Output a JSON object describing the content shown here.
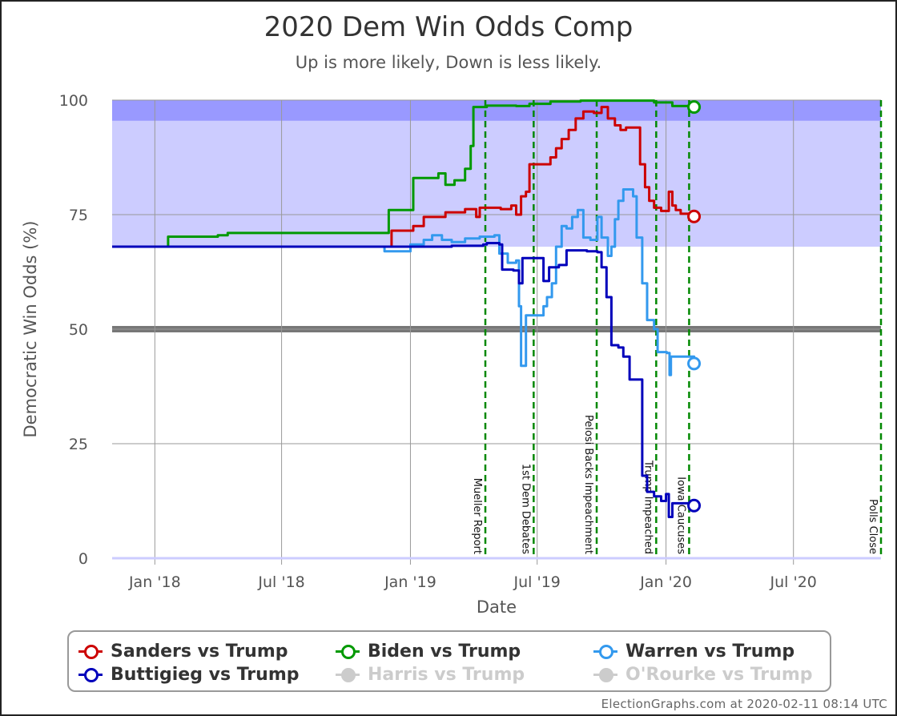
{
  "title": "2020 Dem Win Odds Comp",
  "subtitle": "Up is more likely, Down is less likely.",
  "credits": "ElectionGraphs.com at 2020-02-11 08:14 UTC",
  "legend": [
    {
      "label": "Sanders vs Trump",
      "color": "#cc0000",
      "visible": true
    },
    {
      "label": "Biden vs Trump",
      "color": "#009900",
      "visible": true
    },
    {
      "label": "Warren vs Trump",
      "color": "#3399ee",
      "visible": true
    },
    {
      "label": "Buttigieg vs Trump",
      "color": "#0000bb",
      "visible": true
    },
    {
      "label": "Harris vs Trump",
      "color": "#cccccc",
      "visible": false
    },
    {
      "label": "O'Rourke vs Trump",
      "color": "#cccccc",
      "visible": false
    }
  ],
  "chart_data": {
    "type": "line",
    "title": "2020 Dem Win Odds Comp",
    "subtitle": "Up is more likely, Down is less likely.",
    "xlabel": "Date",
    "ylabel": "Democratic Win Odds (%)",
    "xlim": [
      "2017-11-01",
      "2020-11-03"
    ],
    "ylim": [
      0,
      100
    ],
    "yticks": [
      0,
      25,
      50,
      75,
      100
    ],
    "xticks": [
      {
        "date": "2018-01-01",
        "label": "Jan '18"
      },
      {
        "date": "2018-07-01",
        "label": "Jul '18"
      },
      {
        "date": "2019-01-01",
        "label": "Jan '19"
      },
      {
        "date": "2019-07-01",
        "label": "Jul '19"
      },
      {
        "date": "2020-01-01",
        "label": "Jan '20"
      },
      {
        "date": "2020-07-01",
        "label": "Jul '20"
      }
    ],
    "grid": true,
    "bands": [
      {
        "from": 68,
        "to": 100,
        "color": "#ccccff"
      },
      {
        "from": 95.5,
        "to": 100,
        "color": "#9999ff"
      },
      {
        "from": 49.3,
        "to": 50.7,
        "color": "#777777"
      }
    ],
    "events": [
      {
        "date": "2019-04-18",
        "label": "Mueller Report"
      },
      {
        "date": "2019-06-26",
        "label": "1st Dem Debates"
      },
      {
        "date": "2019-09-24",
        "label": "Pelosi Backs Impeachment"
      },
      {
        "date": "2019-12-18",
        "label": "Trump Impeached"
      },
      {
        "date": "2020-02-03",
        "label": "Iowa Caucuses"
      },
      {
        "date": "2020-11-03",
        "label": "Polls Close"
      }
    ],
    "series": [
      {
        "name": "Sanders vs Trump",
        "color": "#cc0000",
        "points": [
          [
            "2017-11-01",
            68
          ],
          [
            "2018-11-20",
            68
          ],
          [
            "2018-12-05",
            71.5
          ],
          [
            "2019-01-05",
            72.5
          ],
          [
            "2019-01-20",
            74.5
          ],
          [
            "2019-02-20",
            75.5
          ],
          [
            "2019-03-20",
            76.2
          ],
          [
            "2019-04-05",
            74.5
          ],
          [
            "2019-04-10",
            76.5
          ],
          [
            "2019-05-10",
            76.2
          ],
          [
            "2019-05-25",
            77
          ],
          [
            "2019-06-01",
            75
          ],
          [
            "2019-06-08",
            79
          ],
          [
            "2019-06-15",
            80
          ],
          [
            "2019-06-20",
            86
          ],
          [
            "2019-07-15",
            86
          ],
          [
            "2019-07-20",
            87.5
          ],
          [
            "2019-07-28",
            89.5
          ],
          [
            "2019-08-05",
            91.5
          ],
          [
            "2019-08-15",
            93.5
          ],
          [
            "2019-08-25",
            96
          ],
          [
            "2019-09-05",
            97.5
          ],
          [
            "2019-09-20",
            97.2
          ],
          [
            "2019-10-01",
            98.5
          ],
          [
            "2019-10-10",
            96
          ],
          [
            "2019-10-20",
            94.5
          ],
          [
            "2019-10-28",
            93.5
          ],
          [
            "2019-11-05",
            94
          ],
          [
            "2019-11-20",
            94
          ],
          [
            "2019-11-25",
            86
          ],
          [
            "2019-12-02",
            81
          ],
          [
            "2019-12-08",
            78
          ],
          [
            "2019-12-15",
            76.5
          ],
          [
            "2019-12-25",
            75.8
          ],
          [
            "2020-01-02",
            75.8
          ],
          [
            "2020-01-05",
            80
          ],
          [
            "2020-01-10",
            77
          ],
          [
            "2020-01-15",
            76
          ],
          [
            "2020-01-22",
            75.2
          ],
          [
            "2020-02-10",
            74.6
          ]
        ]
      },
      {
        "name": "Biden vs Trump",
        "color": "#009900",
        "points": [
          [
            "2017-11-01",
            68
          ],
          [
            "2018-01-15",
            68
          ],
          [
            "2018-01-20",
            70.2
          ],
          [
            "2018-04-01",
            70.5
          ],
          [
            "2018-04-15",
            71
          ],
          [
            "2018-08-01",
            71
          ],
          [
            "2018-11-20",
            71
          ],
          [
            "2018-12-01",
            76
          ],
          [
            "2019-01-01",
            76
          ],
          [
            "2019-01-05",
            83
          ],
          [
            "2019-02-01",
            83
          ],
          [
            "2019-02-10",
            84
          ],
          [
            "2019-02-20",
            81.5
          ],
          [
            "2019-03-05",
            82.5
          ],
          [
            "2019-03-20",
            85
          ],
          [
            "2019-03-28",
            90
          ],
          [
            "2019-04-01",
            98.5
          ],
          [
            "2019-04-20",
            98.8
          ],
          [
            "2019-06-01",
            98.7
          ],
          [
            "2019-06-20",
            99.2
          ],
          [
            "2019-07-20",
            99.7
          ],
          [
            "2019-09-01",
            99.9
          ],
          [
            "2019-12-01",
            99.9
          ],
          [
            "2019-12-15",
            99.5
          ],
          [
            "2020-01-10",
            98.7
          ],
          [
            "2020-02-10",
            98.5
          ]
        ]
      },
      {
        "name": "Warren vs Trump",
        "color": "#3399ee",
        "points": [
          [
            "2017-11-01",
            68
          ],
          [
            "2018-11-20",
            68
          ],
          [
            "2018-11-25",
            67
          ],
          [
            "2018-12-20",
            67
          ],
          [
            "2019-01-01",
            68.5
          ],
          [
            "2019-01-20",
            69.5
          ],
          [
            "2019-02-01",
            70.5
          ],
          [
            "2019-02-15",
            69.5
          ],
          [
            "2019-03-01",
            69
          ],
          [
            "2019-03-20",
            69.8
          ],
          [
            "2019-04-10",
            70.2
          ],
          [
            "2019-05-01",
            70.5
          ],
          [
            "2019-05-08",
            66.5
          ],
          [
            "2019-05-20",
            64.5
          ],
          [
            "2019-06-01",
            65
          ],
          [
            "2019-06-05",
            55
          ],
          [
            "2019-06-08",
            42
          ],
          [
            "2019-06-15",
            53
          ],
          [
            "2019-07-01",
            53
          ],
          [
            "2019-07-10",
            55
          ],
          [
            "2019-07-15",
            57
          ],
          [
            "2019-07-22",
            60
          ],
          [
            "2019-07-28",
            68
          ],
          [
            "2019-08-05",
            72.5
          ],
          [
            "2019-08-12",
            72
          ],
          [
            "2019-08-20",
            74.5
          ],
          [
            "2019-08-28",
            76
          ],
          [
            "2019-09-05",
            70
          ],
          [
            "2019-09-15",
            69.5
          ],
          [
            "2019-09-25",
            74.5
          ],
          [
            "2019-10-01",
            70
          ],
          [
            "2019-10-10",
            66
          ],
          [
            "2019-10-15",
            68
          ],
          [
            "2019-10-20",
            74
          ],
          [
            "2019-10-25",
            78
          ],
          [
            "2019-11-01",
            80.5
          ],
          [
            "2019-11-15",
            79
          ],
          [
            "2019-11-20",
            70
          ],
          [
            "2019-11-28",
            60
          ],
          [
            "2019-12-05",
            52
          ],
          [
            "2019-12-15",
            50
          ],
          [
            "2019-12-20",
            45
          ],
          [
            "2020-01-02",
            44.8
          ],
          [
            "2020-01-06",
            40
          ],
          [
            "2020-01-08",
            44
          ],
          [
            "2020-01-20",
            44
          ],
          [
            "2020-02-10",
            42.5
          ]
        ]
      },
      {
        "name": "Buttigieg vs Trump",
        "color": "#0000bb",
        "points": [
          [
            "2017-11-01",
            68
          ],
          [
            "2019-01-01",
            68
          ],
          [
            "2019-03-01",
            68.2
          ],
          [
            "2019-04-15",
            68.5
          ],
          [
            "2019-04-20",
            68.8
          ],
          [
            "2019-05-08",
            68.5
          ],
          [
            "2019-05-12",
            63
          ],
          [
            "2019-05-20",
            63
          ],
          [
            "2019-05-28",
            62.8
          ],
          [
            "2019-06-05",
            60
          ],
          [
            "2019-06-10",
            65.5
          ],
          [
            "2019-07-01",
            65.5
          ],
          [
            "2019-07-10",
            60.5
          ],
          [
            "2019-07-18",
            63.5
          ],
          [
            "2019-08-01",
            64
          ],
          [
            "2019-08-12",
            67.2
          ],
          [
            "2019-09-10",
            67
          ],
          [
            "2019-09-25",
            66.8
          ],
          [
            "2019-10-01",
            63.5
          ],
          [
            "2019-10-08",
            57
          ],
          [
            "2019-10-15",
            46.5
          ],
          [
            "2019-10-25",
            46
          ],
          [
            "2019-11-01",
            44
          ],
          [
            "2019-11-10",
            39
          ],
          [
            "2019-11-20",
            39
          ],
          [
            "2019-11-28",
            18
          ],
          [
            "2019-12-05",
            14.5
          ],
          [
            "2019-12-15",
            13.5
          ],
          [
            "2019-12-25",
            12.5
          ],
          [
            "2020-01-01",
            14
          ],
          [
            "2020-01-05",
            9
          ],
          [
            "2020-01-10",
            12
          ],
          [
            "2020-02-10",
            11.5
          ]
        ]
      }
    ]
  }
}
